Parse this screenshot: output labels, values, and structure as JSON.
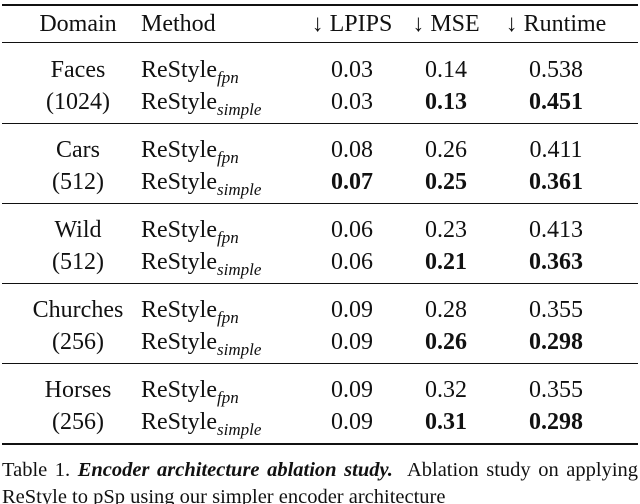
{
  "table": {
    "header": [
      "Domain",
      "Method",
      "↓ LPIPS",
      "↓ MSE",
      "↓ Runtime"
    ],
    "groups": [
      {
        "domain": "Faces",
        "resolution": "(1024)",
        "rows": [
          {
            "method": {
              "name": "ReStyle",
              "subscript": "fpn"
            },
            "values": [
              "0.03",
              "0.14",
              "0.538"
            ],
            "bold": [
              false,
              false,
              false
            ]
          },
          {
            "method": {
              "name": "ReStyle",
              "subscript": "simple"
            },
            "values": [
              "0.03",
              "0.13",
              "0.451"
            ],
            "bold": [
              false,
              true,
              true
            ]
          }
        ]
      },
      {
        "domain": "Cars",
        "resolution": "(512)",
        "rows": [
          {
            "method": {
              "name": "ReStyle",
              "subscript": "fpn"
            },
            "values": [
              "0.08",
              "0.26",
              "0.411"
            ],
            "bold": [
              false,
              false,
              false
            ]
          },
          {
            "method": {
              "name": "ReStyle",
              "subscript": "simple"
            },
            "values": [
              "0.07",
              "0.25",
              "0.361"
            ],
            "bold": [
              true,
              true,
              true
            ]
          }
        ]
      },
      {
        "domain": "Wild",
        "resolution": "(512)",
        "rows": [
          {
            "method": {
              "name": "ReStyle",
              "subscript": "fpn"
            },
            "values": [
              "0.06",
              "0.23",
              "0.413"
            ],
            "bold": [
              false,
              false,
              false
            ]
          },
          {
            "method": {
              "name": "ReStyle",
              "subscript": "simple"
            },
            "values": [
              "0.06",
              "0.21",
              "0.363"
            ],
            "bold": [
              false,
              true,
              true
            ]
          }
        ]
      },
      {
        "domain": "Churches",
        "resolution": "(256)",
        "rows": [
          {
            "method": {
              "name": "ReStyle",
              "subscript": "fpn"
            },
            "values": [
              "0.09",
              "0.28",
              "0.355"
            ],
            "bold": [
              false,
              false,
              false
            ]
          },
          {
            "method": {
              "name": "ReStyle",
              "subscript": "simple"
            },
            "values": [
              "0.09",
              "0.26",
              "0.298"
            ],
            "bold": [
              false,
              true,
              true
            ]
          }
        ]
      },
      {
        "domain": "Horses",
        "resolution": "(256)",
        "rows": [
          {
            "method": {
              "name": "ReStyle",
              "subscript": "fpn"
            },
            "values": [
              "0.09",
              "0.32",
              "0.355"
            ],
            "bold": [
              false,
              false,
              false
            ]
          },
          {
            "method": {
              "name": "ReStyle",
              "subscript": "simple"
            },
            "values": [
              "0.09",
              "0.31",
              "0.298"
            ],
            "bold": [
              false,
              true,
              true
            ]
          }
        ]
      }
    ]
  },
  "caption": {
    "label": "Table 1.",
    "title": "Encoder architecture ablation study.",
    "text": "Ablation study on applying ReStyle to pSp using our simpler encoder architecture"
  }
}
